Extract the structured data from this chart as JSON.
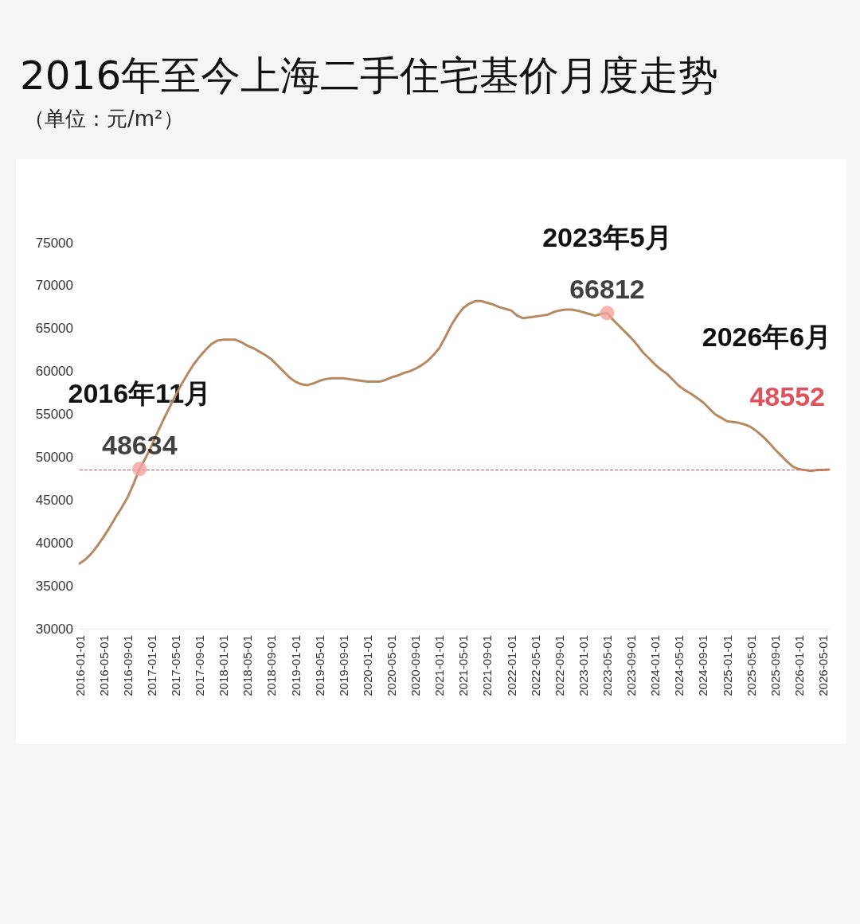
{
  "chart_data": {
    "type": "line",
    "title": "2016年至今上海二手住宅基价月度走势",
    "subtitle": "（单位：元/m²）",
    "categories": [
      "2016-01-01",
      null,
      null,
      null,
      "2016-05-01",
      null,
      null,
      null,
      "2016-09-01",
      null,
      null,
      null,
      "2017-01-01",
      null,
      null,
      null,
      "2017-05-01",
      null,
      null,
      null,
      "2017-09-01",
      null,
      null,
      null,
      "2018-01-01",
      null,
      null,
      null,
      "2018-05-01",
      null,
      null,
      null,
      "2018-09-01",
      null,
      null,
      null,
      "2019-01-01",
      null,
      null,
      null,
      "2019-05-01",
      null,
      null,
      null,
      "2019-09-01",
      null,
      null,
      null,
      "2020-01-01",
      null,
      null,
      null,
      "2020-05-01",
      null,
      null,
      null,
      "2020-09-01",
      null,
      null,
      null,
      "2021-01-01",
      null,
      null,
      null,
      "2021-05-01",
      null,
      null,
      null,
      "2021-09-01",
      null,
      null,
      null,
      "2022-01-01",
      null,
      null,
      null,
      "2022-05-01",
      null,
      null,
      null,
      "2022-09-01",
      null,
      null,
      null,
      "2023-01-01",
      null,
      null,
      null,
      "2023-05-01",
      null,
      null,
      null,
      "2023-09-01",
      null,
      null,
      null,
      "2024-01-01",
      null,
      null,
      null,
      "2024-05-01",
      null,
      null,
      null,
      "2024-09-01",
      null,
      null,
      null,
      "2025-01-01",
      null,
      null,
      null,
      "2025-05-01",
      null,
      null,
      null,
      "2025-09-01",
      null,
      null,
      null,
      "2026-01-01",
      null,
      null,
      null,
      "2026-05-01",
      null
    ],
    "series": [
      {
        "color": "#b58a62",
        "values": [
          37600,
          38100,
          38800,
          39700,
          40700,
          41800,
          43000,
          44100,
          45300,
          46900,
          48634,
          49900,
          51300,
          52900,
          54400,
          55800,
          57200,
          58500,
          59700,
          60800,
          61700,
          62500,
          63200,
          63600,
          63700,
          63700,
          63700,
          63400,
          63000,
          62700,
          62300,
          61900,
          61400,
          60700,
          60000,
          59300,
          58800,
          58500,
          58400,
          58600,
          58900,
          59100,
          59200,
          59200,
          59200,
          59100,
          59000,
          58900,
          58800,
          58800,
          58800,
          59000,
          59300,
          59500,
          59800,
          60000,
          60300,
          60700,
          61200,
          61900,
          62700,
          64000,
          65400,
          66500,
          67400,
          67900,
          68200,
          68200,
          68000,
          67800,
          67500,
          67300,
          67100,
          66500,
          66200,
          66300,
          66400,
          66500,
          66600,
          66900,
          67100,
          67200,
          67200,
          67100,
          66900,
          66700,
          66500,
          66700,
          66812,
          66000,
          65300,
          64600,
          63900,
          63100,
          62200,
          61500,
          60800,
          60200,
          59700,
          59000,
          58300,
          57800,
          57400,
          56900,
          56400,
          55700,
          55000,
          54600,
          54200,
          54100,
          54000,
          53800,
          53500,
          53000,
          52400,
          51700,
          50900,
          50200,
          49500,
          48900,
          48600,
          48500,
          48400,
          48500,
          48500,
          48552
        ]
      },
      {
        "type": "scatter",
        "color": "#f4a3a0",
        "values": [
          null,
          null,
          null,
          null,
          null,
          null,
          null,
          null,
          null,
          null,
          48634,
          null,
          null,
          null,
          null,
          null,
          null,
          null,
          null,
          null,
          null,
          null,
          null,
          null,
          null,
          null,
          null,
          null,
          null,
          null,
          null,
          null,
          null,
          null,
          null,
          null,
          null,
          null,
          null,
          null,
          null,
          null,
          null,
          null,
          null,
          null,
          null,
          null,
          null,
          null,
          null,
          null,
          null,
          null,
          null,
          null,
          null,
          null,
          null,
          null,
          null,
          null,
          null,
          null,
          null,
          null,
          null,
          null,
          null,
          null,
          null,
          null,
          null,
          null,
          null,
          null,
          null,
          null,
          null,
          null,
          null,
          null,
          null,
          null,
          null,
          null,
          null,
          null,
          66812,
          null,
          null,
          null,
          null,
          null,
          null,
          null,
          null,
          null,
          null,
          null,
          null,
          null,
          null,
          null,
          null,
          null,
          null,
          null,
          null,
          null,
          null,
          null,
          null,
          null,
          null,
          null,
          null,
          null,
          null,
          null,
          null,
          null,
          null,
          null,
          null,
          null
        ],
        "value_labels": [
          null,
          null,
          null,
          null,
          null,
          null,
          null,
          null,
          null,
          null,
          "48634",
          null,
          null,
          null,
          null,
          null,
          null,
          null,
          null,
          null,
          null,
          null,
          null,
          null,
          null,
          null,
          null,
          null,
          null,
          null,
          null,
          null,
          null,
          null,
          null,
          null,
          null,
          null,
          null,
          null,
          null,
          null,
          null,
          null,
          null,
          null,
          null,
          null,
          null,
          null,
          null,
          null,
          null,
          null,
          null,
          null,
          null,
          null,
          null,
          null,
          null,
          null,
          null,
          null,
          null,
          null,
          null,
          null,
          null,
          null,
          null,
          null,
          null,
          null,
          null,
          null,
          null,
          null,
          null,
          null,
          null,
          null,
          null,
          null,
          null,
          null,
          null,
          null,
          "66812",
          null,
          null,
          null,
          null,
          null,
          null,
          null,
          null,
          null,
          null,
          null,
          null,
          null,
          null,
          null,
          null,
          null,
          null,
          null,
          null,
          null,
          null,
          null,
          null,
          null,
          null,
          null,
          null,
          null,
          null,
          null,
          null,
          null,
          null,
          null,
          null,
          null
        ]
      }
    ],
    "ylim": [
      30000,
      75000
    ],
    "yticks": [
      30000,
      35000,
      40000,
      45000,
      50000,
      55000,
      60000,
      65000,
      70000,
      75000
    ],
    "line_style": "solid",
    "ref_lines": [
      {
        "axis": "y",
        "value": 48552,
        "label": "48552",
        "color": "#e0525c",
        "line_style": "dashed"
      }
    ],
    "annotations": [
      {
        "text": "2016年11月",
        "y": 48634
      },
      {
        "text": "2023年5月",
        "y": 66812
      },
      "2026年6月"
    ]
  }
}
